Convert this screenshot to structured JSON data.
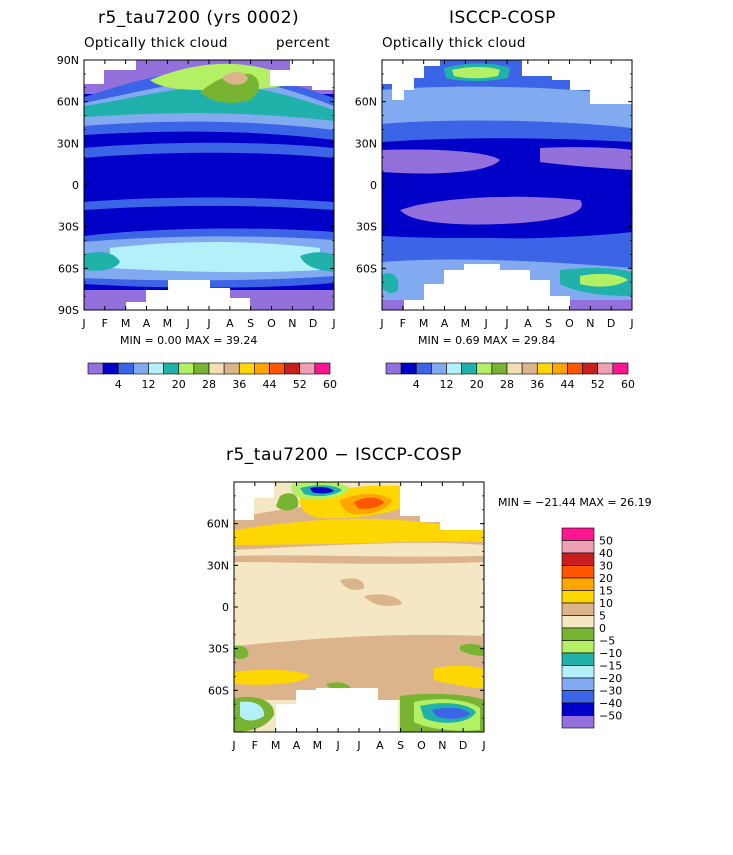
{
  "chart_data": [
    {
      "type": "heatmap",
      "title": "r5_tau7200 (yrs 0002)",
      "subtitle_left": "Optically thick cloud",
      "subtitle_right": "percent",
      "x_ticks": [
        "J",
        "F",
        "M",
        "A",
        "M",
        "J",
        "J",
        "A",
        "S",
        "O",
        "N",
        "D",
        "J"
      ],
      "y_ticks": [
        "90N",
        "60N",
        "30N",
        "0",
        "30S",
        "60S",
        "90S"
      ],
      "stats": "MIN =    0.00  MAX =  39.24",
      "colorbar_labels": [
        "4",
        "12",
        "20",
        "28",
        "36",
        "44",
        "52",
        "60"
      ],
      "ylim": [
        -90,
        90
      ],
      "zlim": [
        0,
        39.24
      ]
    },
    {
      "type": "heatmap",
      "title": "ISCCP-COSP",
      "subtitle_left": "Optically thick cloud",
      "x_ticks": [
        "J",
        "F",
        "M",
        "A",
        "M",
        "J",
        "J",
        "A",
        "S",
        "O",
        "N",
        "D",
        "J"
      ],
      "y_ticks": [
        "60N",
        "30N",
        "0",
        "30S",
        "60S"
      ],
      "stats": "MIN =    0.69  MAX =  29.84",
      "colorbar_labels": [
        "4",
        "12",
        "20",
        "28",
        "36",
        "44",
        "52",
        "60"
      ],
      "zlim": [
        0.69,
        29.84
      ]
    },
    {
      "type": "heatmap",
      "title": "r5_tau7200 − ISCCP-COSP",
      "x_ticks": [
        "J",
        "F",
        "M",
        "A",
        "M",
        "J",
        "J",
        "A",
        "S",
        "O",
        "N",
        "D",
        "J"
      ],
      "y_ticks": [
        "60N",
        "30N",
        "0",
        "30S",
        "60S"
      ],
      "stats": "MIN = −21.44  MAX =  26.19",
      "colorbar_labels": [
        "50",
        "40",
        "30",
        "20",
        "15",
        "10",
        "5",
        "0",
        "−5",
        "−10",
        "−15",
        "−20",
        "−30",
        "−40",
        "−50"
      ],
      "zlim": [
        -21.44,
        26.19
      ]
    }
  ],
  "palette": {
    "seq": [
      "#9370db",
      "#0000c8",
      "#3c64e6",
      "#82aaf0",
      "#b4f0fa",
      "#20b2aa",
      "#b4f064",
      "#78b432",
      "#f5deb3",
      "#dcb48c",
      "#ffd700",
      "#ffa500",
      "#ff5500",
      "#c81e1e",
      "#f0a0b4",
      "#ff1493"
    ],
    "diff": [
      "#ff1493",
      "#f0a0b4",
      "#c81e1e",
      "#ff5500",
      "#ffa500",
      "#ffd700",
      "#dcb48c",
      "#f5e6c4",
      "#78b432",
      "#b4f064",
      "#20b2aa",
      "#b4f0fa",
      "#82aaf0",
      "#3c64e6",
      "#0000c8",
      "#9370db"
    ]
  }
}
